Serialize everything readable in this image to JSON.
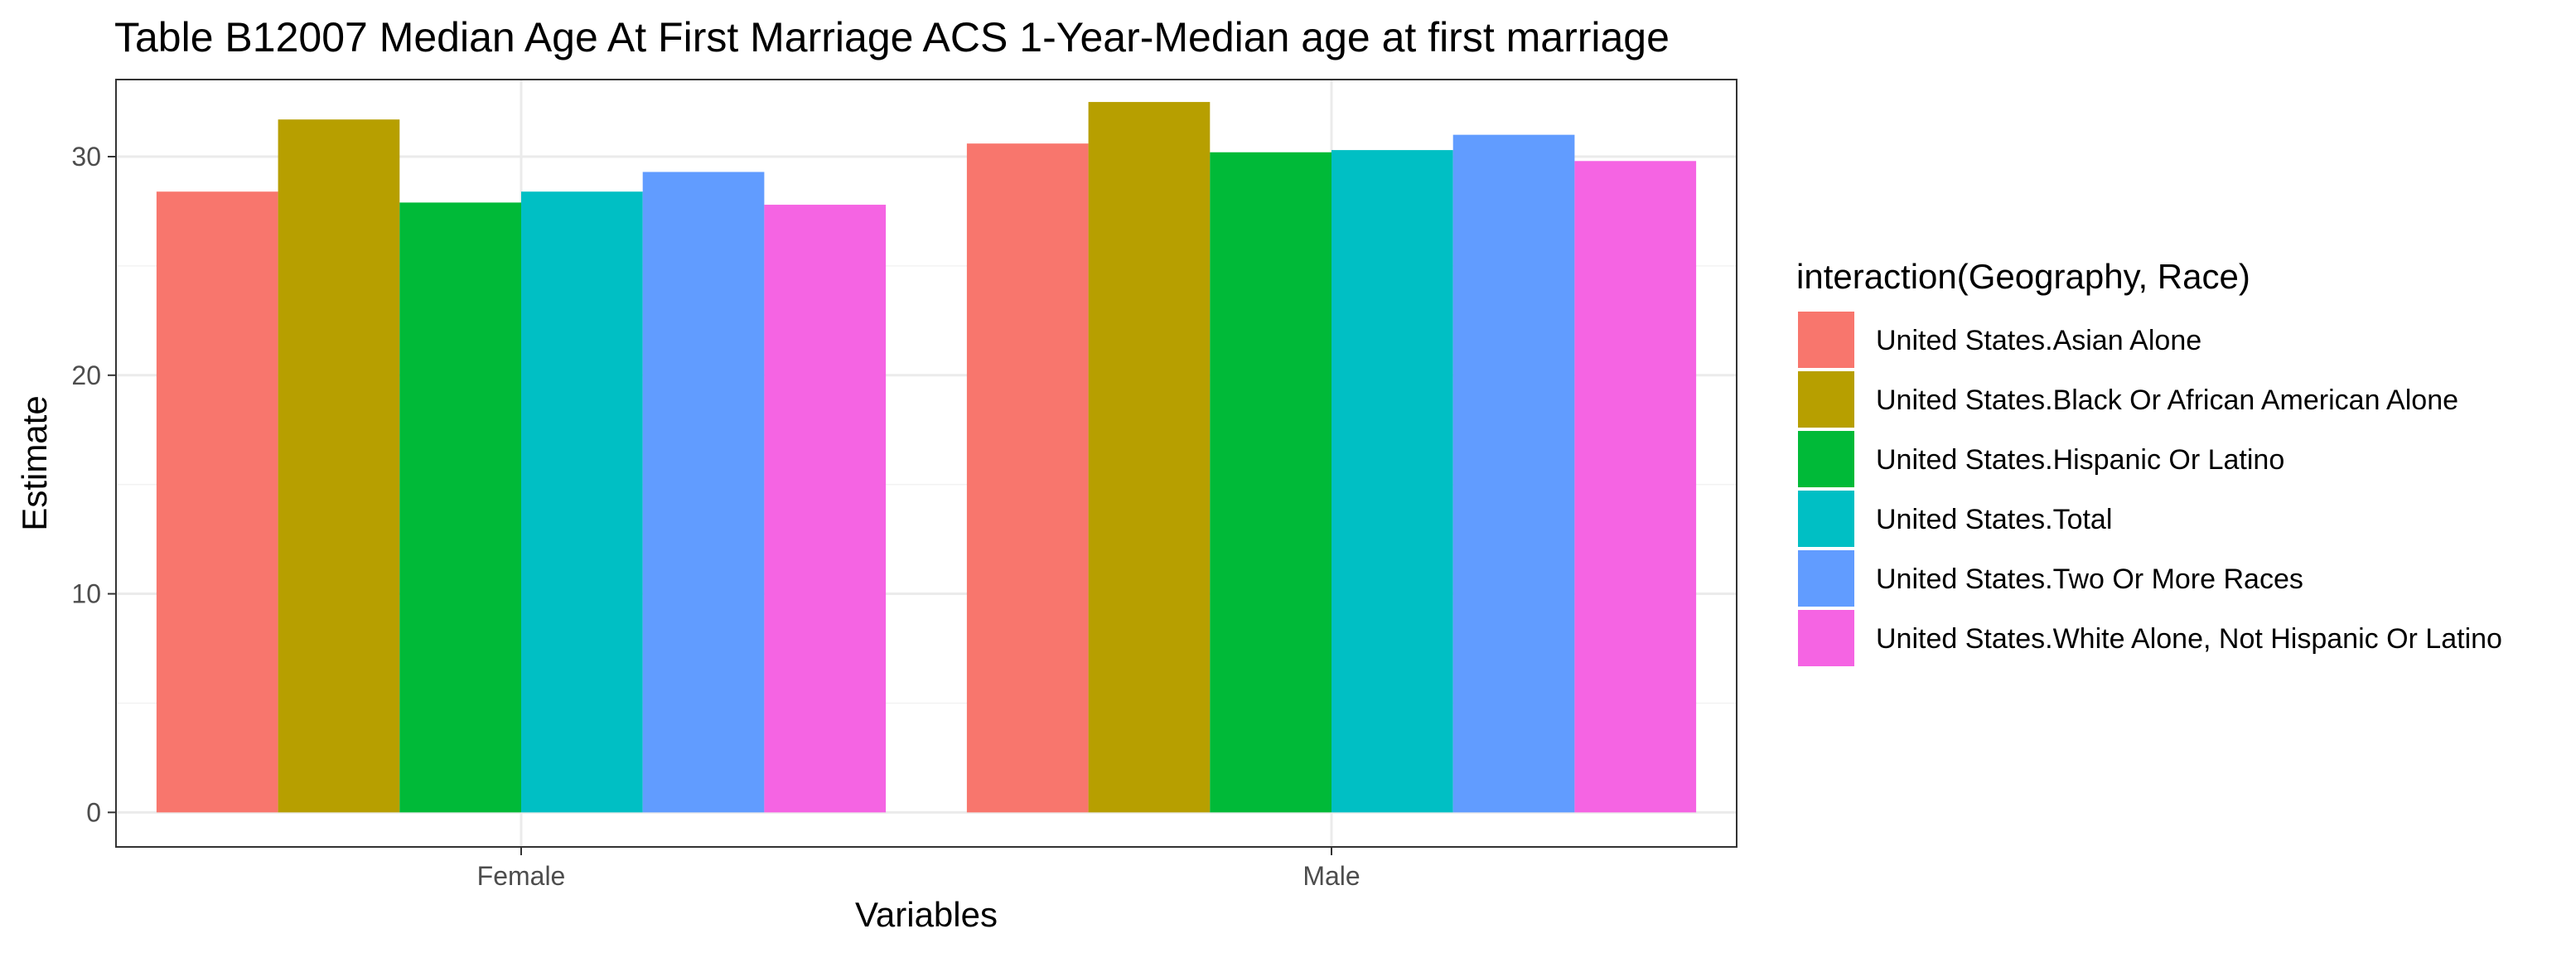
{
  "chart_data": {
    "type": "bar",
    "title": "Table B12007 Median Age At First Marriage ACS 1-Year-Median age at first marriage",
    "xlabel": "Variables",
    "ylabel": "Estimate",
    "categories": [
      "Female",
      "Male"
    ],
    "ylim": [
      0,
      33
    ],
    "yticks": [
      0,
      10,
      20,
      30
    ],
    "grid": true,
    "legend_title": "interaction(Geography, Race)",
    "legend_position": "right",
    "series": [
      {
        "name": "United States.Asian Alone",
        "color": "#F8766D",
        "values": [
          28.4,
          30.6
        ]
      },
      {
        "name": "United States.Black Or African American Alone",
        "color": "#B79F00",
        "values": [
          31.7,
          32.5
        ]
      },
      {
        "name": "United States.Hispanic Or Latino",
        "color": "#00BA38",
        "values": [
          27.9,
          30.2
        ]
      },
      {
        "name": "United States.Total",
        "color": "#00BFC4",
        "values": [
          28.4,
          30.3
        ]
      },
      {
        "name": "United States.Two Or More Races",
        "color": "#619CFF",
        "values": [
          29.3,
          31.0
        ]
      },
      {
        "name": "United States.White Alone, Not Hispanic Or Latino",
        "color": "#F564E3",
        "values": [
          27.8,
          29.8
        ]
      }
    ]
  }
}
